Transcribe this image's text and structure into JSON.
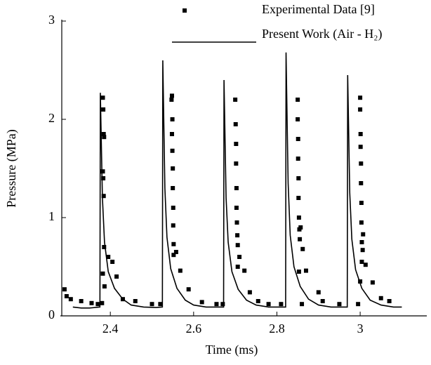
{
  "chart_data": {
    "type": "line",
    "xlabel": "Time (ms)",
    "ylabel": "Pressure (MPa)",
    "xlim": [
      2.28,
      3.16
    ],
    "xticks": [
      2.4,
      2.6,
      2.8,
      3
    ],
    "ylim": [
      0,
      3
    ],
    "yticks": [
      0,
      1,
      2,
      3
    ],
    "series": [
      {
        "name": "Experimental Data [9]",
        "type": "scatter",
        "color": "#000000",
        "x": [
          2.29,
          2.295,
          2.305,
          2.33,
          2.355,
          2.37,
          2.382,
          2.383,
          2.384,
          2.385,
          2.382,
          2.383,
          2.384,
          2.385,
          2.382,
          2.386,
          2.38,
          2.395,
          2.405,
          2.415,
          2.43,
          2.46,
          2.5,
          2.52,
          2.548,
          2.547,
          2.549,
          2.548,
          2.549,
          2.55,
          2.55,
          2.551,
          2.551,
          2.552,
          2.552,
          2.558,
          2.568,
          2.588,
          2.62,
          2.655,
          2.67,
          2.7,
          2.701,
          2.702,
          2.702,
          2.703,
          2.703,
          2.704,
          2.705,
          2.706,
          2.706,
          2.71,
          2.722,
          2.735,
          2.755,
          2.78,
          2.81,
          2.85,
          2.85,
          2.851,
          2.851,
          2.852,
          2.852,
          2.853,
          2.854,
          2.855,
          2.853,
          2.857,
          2.862,
          2.87,
          2.86,
          2.9,
          2.91,
          2.95,
          3.0,
          3.0,
          3.001,
          3.001,
          3.002,
          3.002,
          3.003,
          3.003,
          3.004,
          3.004,
          3.0,
          3.007,
          3.006,
          3.013,
          3.03,
          2.995,
          3.05,
          3.07
        ],
        "values": [
          0.27,
          0.2,
          0.17,
          0.15,
          0.13,
          0.12,
          2.22,
          2.1,
          1.85,
          1.82,
          1.47,
          1.4,
          1.22,
          0.7,
          0.43,
          0.3,
          0.13,
          0.6,
          0.55,
          0.4,
          0.17,
          0.15,
          0.12,
          0.12,
          2.24,
          2.2,
          2.0,
          1.85,
          1.68,
          1.5,
          1.3,
          1.1,
          0.92,
          0.73,
          0.62,
          0.65,
          0.46,
          0.27,
          0.14,
          0.12,
          0.12,
          2.2,
          1.95,
          1.75,
          1.55,
          1.3,
          1.1,
          0.95,
          0.82,
          0.72,
          0.5,
          0.6,
          0.46,
          0.24,
          0.15,
          0.12,
          0.12,
          2.2,
          2.0,
          1.8,
          1.6,
          1.4,
          1.2,
          1.0,
          0.88,
          0.78,
          0.45,
          0.9,
          0.68,
          0.46,
          0.12,
          0.24,
          0.15,
          0.12,
          2.22,
          2.1,
          1.85,
          1.72,
          1.55,
          1.35,
          1.15,
          0.95,
          0.75,
          0.55,
          0.35,
          0.83,
          0.67,
          0.52,
          0.34,
          0.12,
          0.18,
          0.15
        ]
      },
      {
        "name": "Present Work (Air - H₂)",
        "type": "line",
        "color": "#000000",
        "x": [
          2.31,
          2.33,
          2.35,
          2.375,
          2.376,
          2.381,
          2.386,
          2.395,
          2.41,
          2.43,
          2.45,
          2.48,
          2.51,
          2.525,
          2.526,
          2.531,
          2.536,
          2.545,
          2.56,
          2.58,
          2.6,
          2.63,
          2.672,
          2.673,
          2.678,
          2.683,
          2.692,
          2.707,
          2.727,
          2.75,
          2.78,
          2.821,
          2.822,
          2.827,
          2.832,
          2.841,
          2.856,
          2.876,
          2.9,
          2.93,
          2.969,
          2.97,
          2.975,
          2.98,
          2.989,
          3.004,
          3.024,
          3.05,
          3.08,
          3.1
        ],
        "values": [
          0.09,
          0.08,
          0.08,
          0.09,
          2.27,
          1.2,
          0.75,
          0.45,
          0.28,
          0.17,
          0.11,
          0.09,
          0.085,
          0.09,
          2.6,
          1.3,
          0.8,
          0.48,
          0.28,
          0.16,
          0.11,
          0.09,
          0.09,
          2.4,
          1.2,
          0.75,
          0.45,
          0.27,
          0.16,
          0.11,
          0.09,
          0.09,
          2.68,
          1.35,
          0.82,
          0.5,
          0.3,
          0.17,
          0.11,
          0.09,
          0.09,
          2.45,
          1.25,
          0.78,
          0.47,
          0.28,
          0.16,
          0.11,
          0.09,
          0.09
        ]
      }
    ]
  }
}
